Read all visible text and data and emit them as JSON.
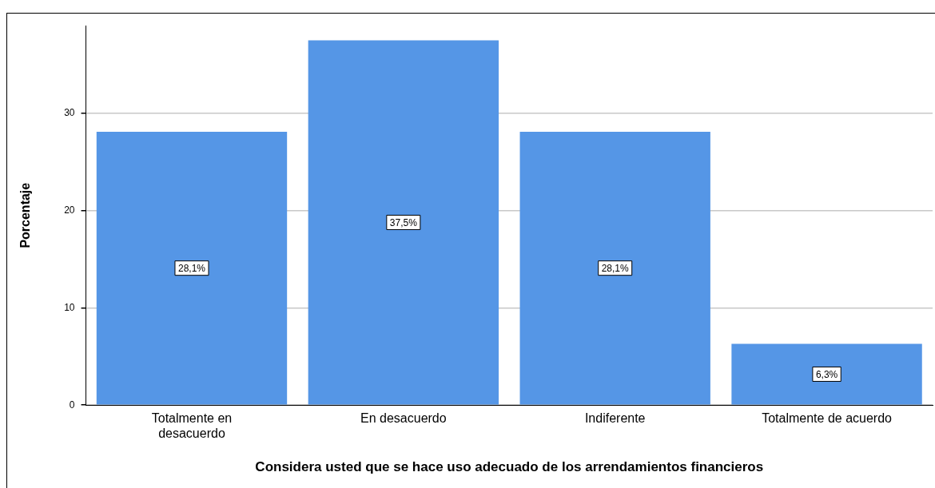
{
  "chart_data": {
    "type": "bar",
    "xlabel": "Considera usted que se hace uso adecuado de los arrendamientos financieros",
    "ylabel": "Porcentaje",
    "categories": [
      "Totalmente en desacuerdo",
      "En desacuerdo",
      "Indiferente",
      "Totalmente de acuerdo"
    ],
    "values": [
      28.1,
      37.5,
      28.1,
      6.3
    ],
    "color": "#5596e6",
    "value_labels": [
      "28,1%",
      "37,5%",
      "28,1%",
      "6,3%"
    ],
    "ylim": [
      0,
      39
    ],
    "yticks": [
      0,
      10,
      20,
      30
    ],
    "grid": "y",
    "legend": false
  }
}
